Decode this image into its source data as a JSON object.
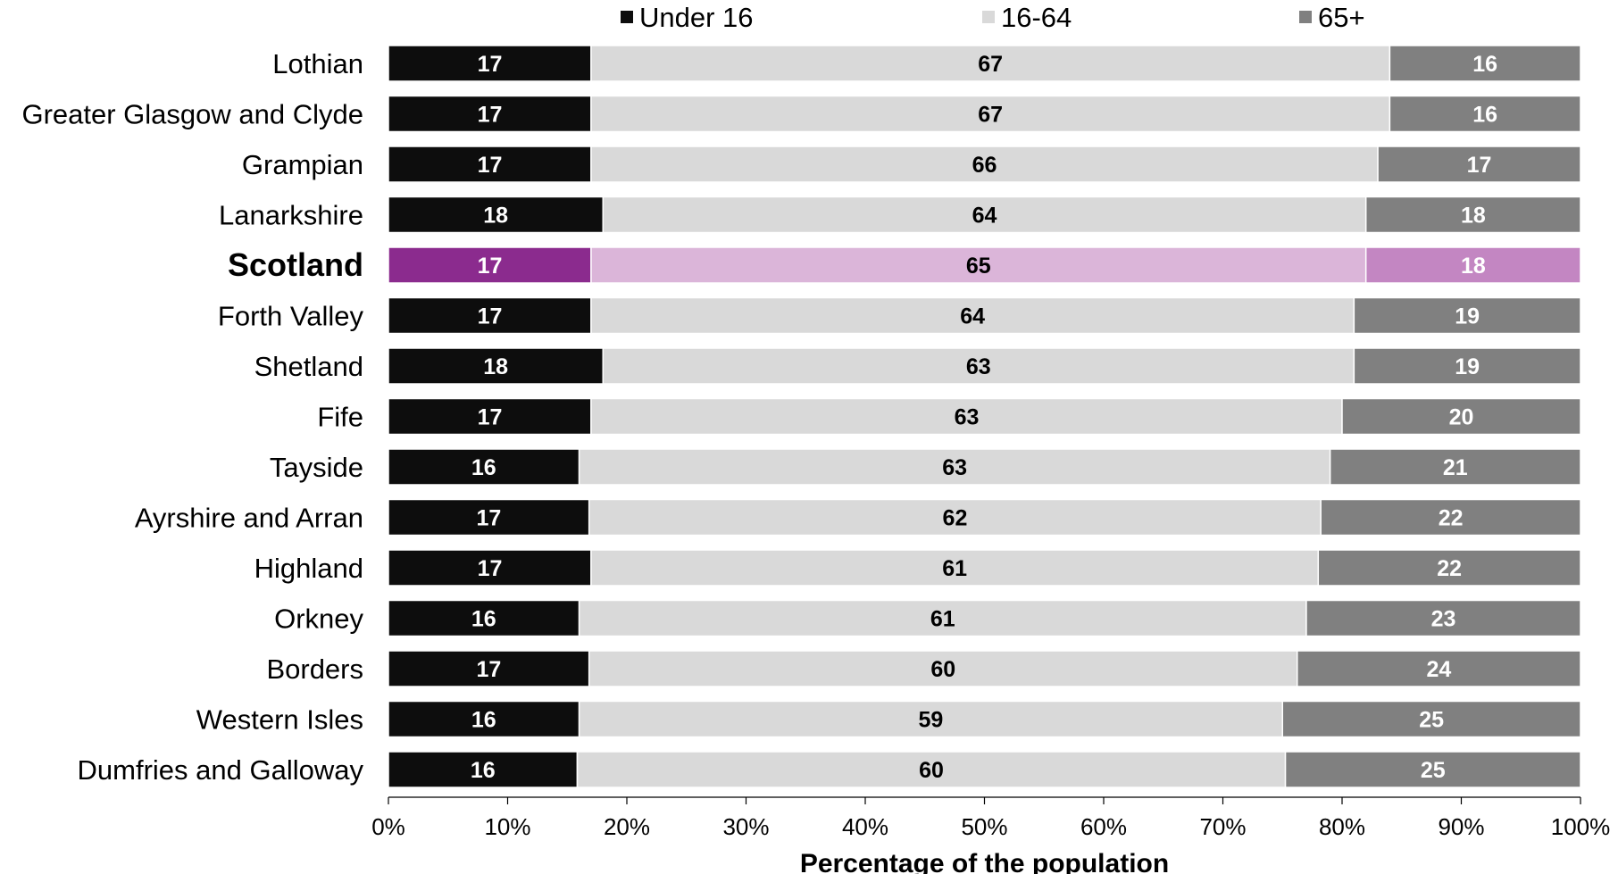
{
  "chart_data": {
    "type": "bar",
    "orientation": "horizontal",
    "stacked": true,
    "title": "",
    "xlabel": "Percentage of the population",
    "ylabel": "",
    "xlim": [
      0,
      100
    ],
    "x_ticks": [
      "0%",
      "10%",
      "20%",
      "30%",
      "40%",
      "50%",
      "60%",
      "70%",
      "80%",
      "90%",
      "100%"
    ],
    "grid": false,
    "legend_position": "top",
    "highlight_category": "Scotland",
    "categories": [
      "Lothian",
      "Greater Glasgow and Clyde",
      "Grampian",
      "Lanarkshire",
      "Scotland",
      "Forth Valley",
      "Shetland",
      "Fife",
      "Tayside",
      "Ayrshire and Arran",
      "Highland",
      "Orkney",
      "Borders",
      "Western Isles",
      "Dumfries and Galloway"
    ],
    "series": [
      {
        "name": "Under 16",
        "color": "#0d0d0d",
        "highlight_color": "#8b2b8e",
        "label_color": "#ffffff",
        "highlight_label_color": "#ffffff",
        "values": [
          17,
          17,
          17,
          18,
          17,
          17,
          18,
          17,
          16,
          17,
          17,
          16,
          17,
          16,
          16
        ]
      },
      {
        "name": "16-64",
        "color": "#d9d9d9",
        "highlight_color": "#dbb5d9",
        "label_color": "#000000",
        "highlight_label_color": "#000000",
        "values": [
          67,
          67,
          66,
          64,
          65,
          64,
          63,
          63,
          63,
          62,
          61,
          61,
          60,
          59,
          60
        ]
      },
      {
        "name": "65+",
        "color": "#808080",
        "highlight_color": "#c386c2",
        "label_color": "#ffffff",
        "highlight_label_color": "#ffffff",
        "values": [
          16,
          16,
          17,
          18,
          18,
          19,
          19,
          20,
          21,
          22,
          22,
          23,
          24,
          25,
          25
        ]
      }
    ],
    "highlight_label_color": "#8b2b8e"
  }
}
